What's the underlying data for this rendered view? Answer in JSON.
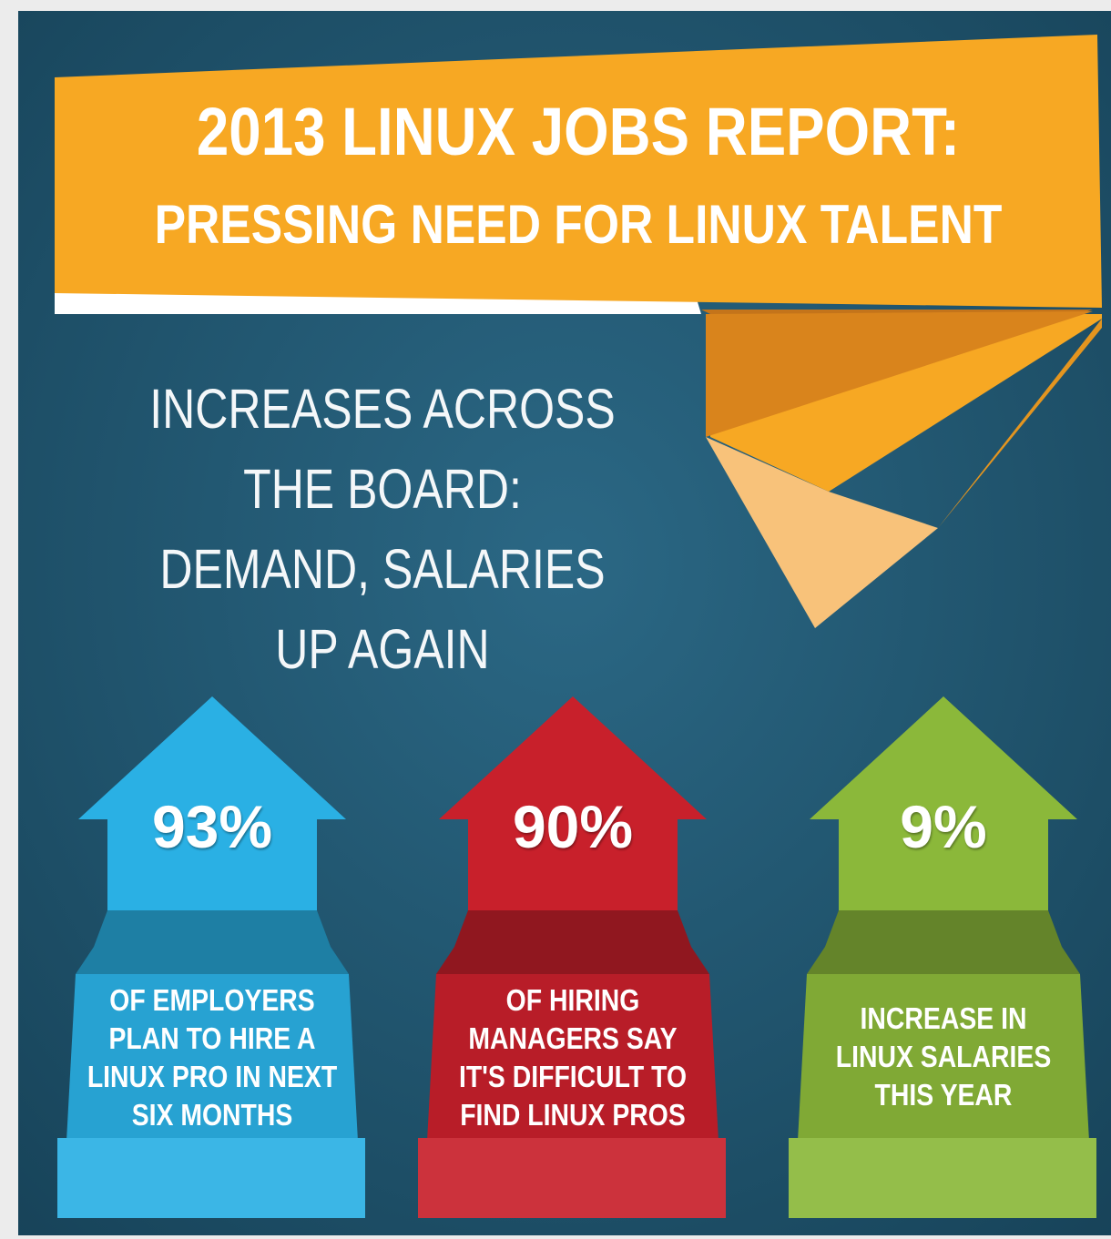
{
  "header": {
    "title_line1": "2013 LINUX JOBS REPORT:",
    "title_line2": "PRESSING NEED FOR LINUX TALENT"
  },
  "subtitle": {
    "lines": [
      "INCREASES ACROSS",
      "THE BOARD:",
      "DEMAND, SALARIES",
      "UP AGAIN"
    ]
  },
  "stats": [
    {
      "value": "93%",
      "description_lines": [
        "OF EMPLOYERS",
        "PLAN TO HIRE A",
        "LINUX PRO IN NEXT",
        "SIX MONTHS"
      ],
      "color": "#2ab0e4"
    },
    {
      "value": "90%",
      "description_lines": [
        "OF HIRING",
        "MANAGERS SAY",
        "IT'S DIFFICULT TO",
        "FIND LINUX PROS"
      ],
      "color": "#c8202b"
    },
    {
      "value": "9%",
      "description_lines": [
        "INCREASE IN",
        "LINUX SALARIES",
        "THIS YEAR"
      ],
      "color": "#8bb83a"
    }
  ],
  "colors": {
    "background": "#1f5068",
    "banner": "#f7a823",
    "banner_shade": "#d9841c",
    "banner_light": "#f8c27a"
  }
}
